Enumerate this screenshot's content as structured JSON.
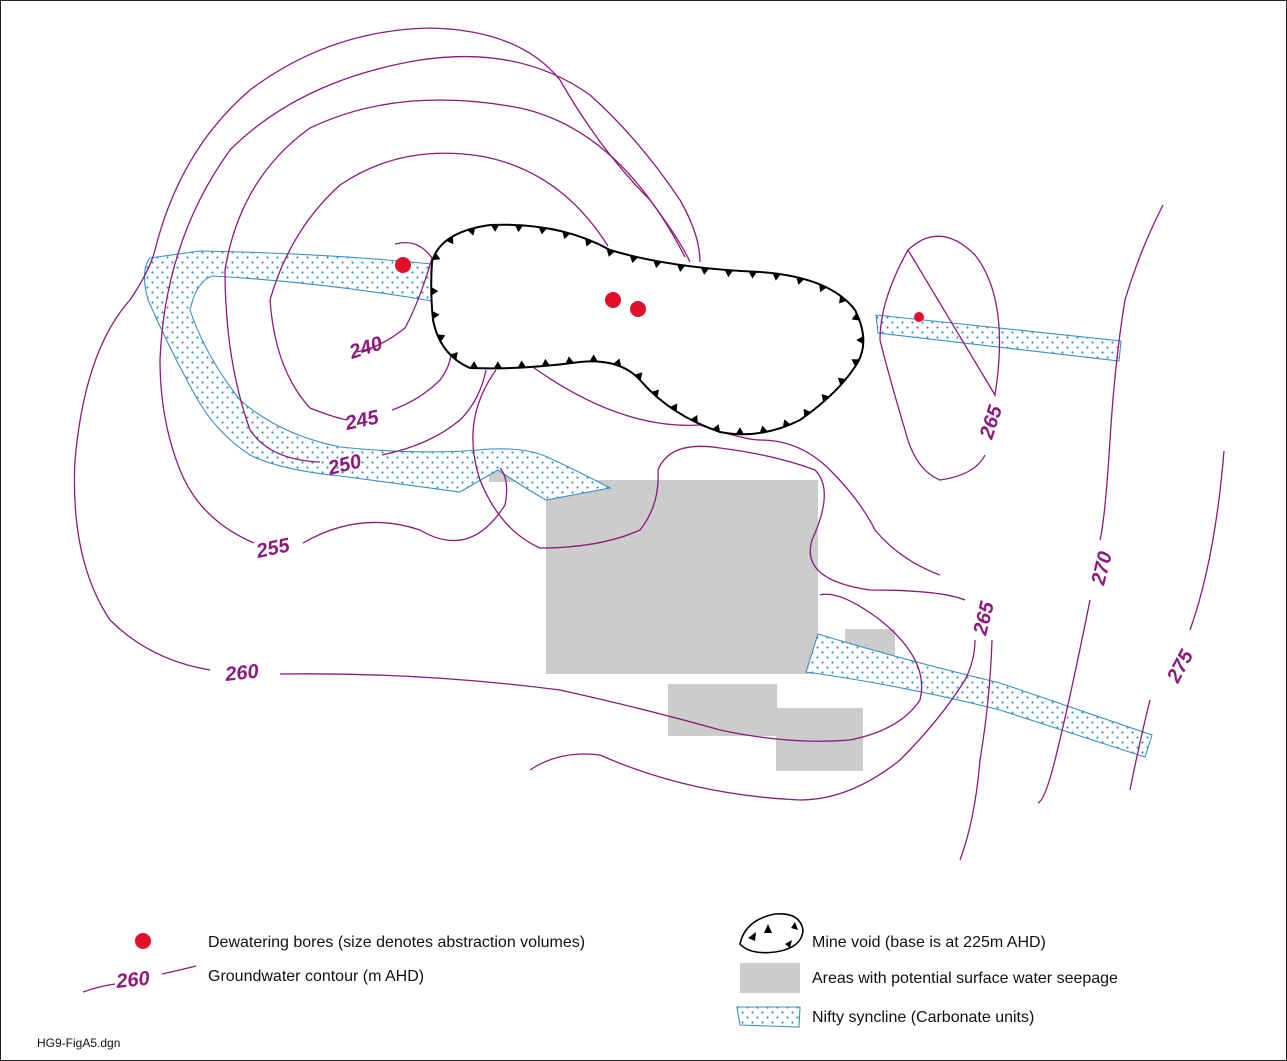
{
  "contour_labels": [
    {
      "id": "240",
      "text": "240"
    },
    {
      "id": "245",
      "text": "245"
    },
    {
      "id": "250",
      "text": "250"
    },
    {
      "id": "255",
      "text": "255"
    },
    {
      "id": "260",
      "text": "260"
    },
    {
      "id": "265a",
      "text": "265"
    },
    {
      "id": "265b",
      "text": "265"
    },
    {
      "id": "270",
      "text": "270"
    },
    {
      "id": "275",
      "text": "275"
    }
  ],
  "legend": {
    "bores": "Dewatering bores (size denotes abstraction volumes)",
    "contour": "Groundwater contour  (m AHD)",
    "contour_sample": "260",
    "void": "Mine void (base is at 225m AHD)",
    "seepage": "Areas with potential surface water seepage",
    "syncline": "Nifty syncline (Carbonate units)"
  },
  "file_id": "HG9-FigA5.dgn",
  "colors": {
    "contour": "#8b1a7d",
    "bore": "#e0102b",
    "seepage": "#cccccc",
    "syncline_outline": "#3a8fc6"
  }
}
